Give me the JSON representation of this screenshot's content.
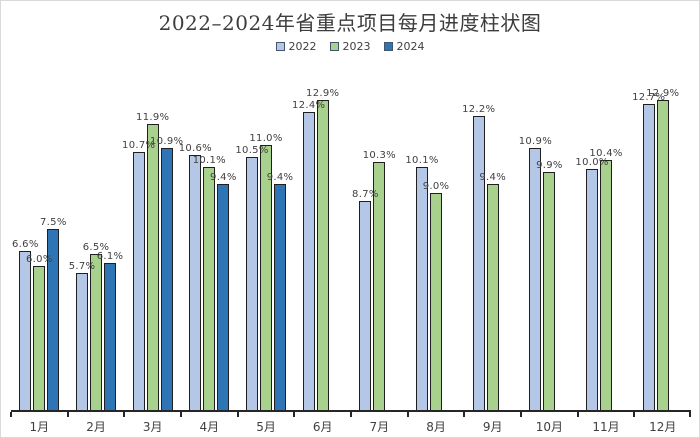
{
  "title": "2022–2024年省重点项目每月进度柱状图",
  "legend": [
    {
      "label": "2022",
      "color": "#b4c7e7"
    },
    {
      "label": "2023",
      "color": "#a9d18e"
    },
    {
      "label": "2024",
      "color": "#2e75b6"
    }
  ],
  "chart_data": {
    "type": "bar",
    "title": "2022–2024年省重点项目每月进度柱状图",
    "categories": [
      "1月",
      "2月",
      "3月",
      "4月",
      "5月",
      "6月",
      "7月",
      "8月",
      "9月",
      "10月",
      "11月",
      "12月"
    ],
    "series": [
      {
        "name": "2022",
        "color": "#b4c7e7",
        "values": [
          6.6,
          5.7,
          10.7,
          10.6,
          10.5,
          12.4,
          8.7,
          10.1,
          12.2,
          10.9,
          10.0,
          12.7
        ]
      },
      {
        "name": "2023",
        "color": "#a9d18e",
        "values": [
          6.0,
          6.5,
          11.9,
          10.1,
          11.0,
          12.9,
          10.3,
          9.0,
          9.4,
          9.9,
          10.4,
          12.9
        ]
      },
      {
        "name": "2024",
        "color": "#2e75b6",
        "values": [
          7.5,
          6.1,
          10.9,
          9.4,
          9.4,
          null,
          null,
          null,
          null,
          null,
          null,
          null
        ]
      }
    ],
    "value_suffix": "%",
    "ylim": [
      0,
      14.5
    ],
    "grid": false,
    "legend_position": "top",
    "axis_color": "#262626",
    "bar_border_color": "#1f1f1f",
    "label_color": "#404040",
    "title_color": "#3d3d3d"
  }
}
